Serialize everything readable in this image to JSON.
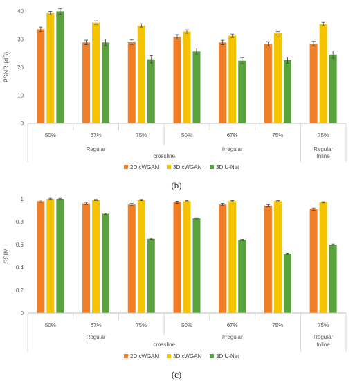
{
  "chart_data": [
    {
      "type": "bar",
      "panel_label": "(b)",
      "ylabel": "PSNR (dB)",
      "ylim": [
        0,
        40
      ],
      "yticks": [
        0,
        10,
        20,
        30,
        40
      ],
      "grid": false,
      "legend_position": "bottom-center",
      "categories": [
        "50%",
        "67%",
        "75%",
        "50%",
        "67%",
        "75%",
        "75%"
      ],
      "group_labels": [
        {
          "label": "Regular",
          "span": [
            0,
            2
          ]
        },
        {
          "label": "Irregular",
          "span": [
            3,
            5
          ]
        },
        {
          "label": "Regular",
          "span": [
            6,
            6
          ]
        }
      ],
      "super_group_labels": [
        {
          "label": "crossline",
          "span": [
            0,
            5
          ]
        },
        {
          "label": "Inline",
          "span": [
            6,
            6
          ]
        }
      ],
      "series": [
        {
          "name": "2D cWGAN",
          "color": "#f07e26",
          "values": [
            33.5,
            28.8,
            28.9,
            30.8,
            28.8,
            28.3,
            28.4
          ],
          "errors": [
            0.8,
            0.8,
            0.8,
            0.8,
            0.8,
            0.8,
            0.8
          ]
        },
        {
          "name": "3D cWGAN",
          "color": "#f5c400",
          "values": [
            39.3,
            35.9,
            34.9,
            32.7,
            31.2,
            32.1,
            35.4
          ],
          "errors": [
            0.6,
            0.6,
            0.6,
            0.6,
            0.6,
            0.6,
            0.6
          ]
        },
        {
          "name": "3D U-Net",
          "color": "#5aa23e",
          "values": [
            39.9,
            28.8,
            22.8,
            25.6,
            22.3,
            22.5,
            24.5
          ],
          "errors": [
            1.0,
            1.2,
            1.3,
            1.2,
            1.1,
            1.1,
            1.3
          ]
        }
      ]
    },
    {
      "type": "bar",
      "panel_label": "(c)",
      "ylabel": "SSIM",
      "ylim": [
        0,
        1.0
      ],
      "yticks": [
        0,
        0.2,
        0.4,
        0.6,
        0.8,
        1
      ],
      "grid": false,
      "legend_position": "bottom-center",
      "categories": [
        "50%",
        "67%",
        "75%",
        "50%",
        "67%",
        "75%",
        "75%"
      ],
      "group_labels": [
        {
          "label": "Regular",
          "span": [
            0,
            2
          ]
        },
        {
          "label": "Irregular",
          "span": [
            3,
            5
          ]
        },
        {
          "label": "Regular",
          "span": [
            6,
            6
          ]
        }
      ],
      "super_group_labels": [
        {
          "label": "crossline",
          "span": [
            0,
            5
          ]
        },
        {
          "label": "Inline",
          "span": [
            6,
            6
          ]
        }
      ],
      "series": [
        {
          "name": "2D cWGAN",
          "color": "#f07e26",
          "values": [
            0.98,
            0.96,
            0.95,
            0.97,
            0.95,
            0.94,
            0.91
          ],
          "errors": [
            0.01,
            0.01,
            0.01,
            0.01,
            0.01,
            0.01,
            0.01
          ]
        },
        {
          "name": "3D cWGAN",
          "color": "#f5c400",
          "values": [
            1.0,
            0.99,
            0.99,
            0.98,
            0.98,
            0.98,
            0.97
          ],
          "errors": [
            0.005,
            0.005,
            0.005,
            0.005,
            0.005,
            0.005,
            0.005
          ]
        },
        {
          "name": "3D U-Net",
          "color": "#5aa23e",
          "values": [
            1.0,
            0.87,
            0.65,
            0.83,
            0.64,
            0.52,
            0.6
          ],
          "errors": [
            0.005,
            0.005,
            0.005,
            0.005,
            0.005,
            0.005,
            0.005
          ]
        }
      ]
    }
  ]
}
